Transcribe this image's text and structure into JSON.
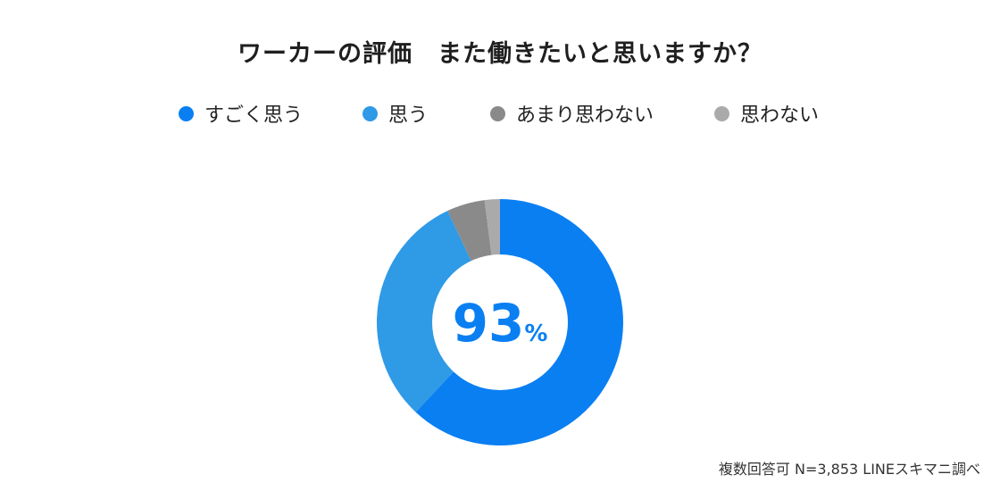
{
  "chart_data": {
    "type": "pie",
    "title": "ワーカーの評価　また働きたいと思いますか？",
    "categories": [
      "すごく思う",
      "思う",
      "あまり思わない",
      "思わない"
    ],
    "values": [
      62,
      31,
      5,
      2
    ],
    "unit": "%",
    "colors": [
      "#0a7ff2",
      "#2f9ae6",
      "#8a8a8a",
      "#aaaaaa"
    ],
    "legend_position": "top",
    "center_label": {
      "value": "93",
      "unit": "%"
    },
    "donut": true
  },
  "source": "複数回答可 N=3,853 LINEスキマニ調べ"
}
